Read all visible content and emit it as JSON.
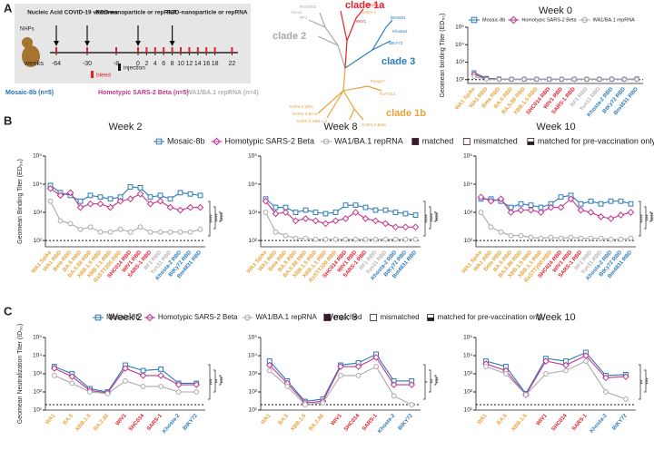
{
  "panel_labels": [
    "A",
    "B",
    "C"
  ],
  "timeline": {
    "subject": "NHPs",
    "axis_label": "weeks",
    "weeks": [
      "-64",
      "-30",
      "-8",
      "0",
      "2",
      "4",
      "6",
      "8",
      "10",
      "12",
      "14",
      "16",
      "18",
      "22"
    ],
    "events": [
      "Nucleic Acid COVID-19 vaccines",
      "RBD-nanoparticle or repRNA",
      "RBD-nanoparticle or repRNA"
    ],
    "key": [
      "bleed",
      "injection"
    ],
    "groups": [
      {
        "name": "Mosaic-8b (n=5)",
        "color": "#1f6fb2"
      },
      {
        "name": "Homotypic SARS-2 Beta (n=5)",
        "color": "#c2368f"
      },
      {
        "name": "WA1/BA.1 repRNA (n=4)",
        "color": "#b0b0b0"
      }
    ]
  },
  "tree": {
    "clades": [
      {
        "name": "clade 1a",
        "color": "#e8202a"
      },
      {
        "name": "clade 2",
        "color": "#a8a8a8"
      },
      {
        "name": "clade 3",
        "color": "#2a7ab8"
      },
      {
        "name": "clade 1b",
        "color": "#e8a33a"
      }
    ],
    "leaves": [
      "SARS-1",
      "WIV1",
      "SHC014",
      "RmYN02",
      "Yun11",
      "RF1",
      "BM4831",
      "Khosta2",
      "BtKY72",
      "SARS-2 WA1",
      "SARS-2 BA.5",
      "SARS-2 XBB.1.5",
      "SARS-2 Beta",
      "Pang17",
      "RaTG13"
    ]
  },
  "legend": [
    {
      "name": "Mosaic-8b",
      "color": "#2a7ab8",
      "marker": "square"
    },
    {
      "name": "Homotypic SARS-2 Beta",
      "color": "#c2368f",
      "marker": "diamond"
    },
    {
      "name": "WA1/BA.1 repRNA",
      "color": "#aaaaaa",
      "marker": "circle"
    }
  ],
  "legend_extra": [
    {
      "name": "matched",
      "fill": "full"
    },
    {
      "name": "mismatched",
      "fill": "none"
    },
    {
      "name": "matched for pre-vaccination only",
      "fill": "half"
    }
  ],
  "chart_data": [
    {
      "type": "line",
      "title": "Week 0",
      "ylabel": "Geomean binding Titer (ED₅₀)",
      "categories": [
        "WA1 Spike",
        "WA1 RBD",
        "Beta RBD",
        "BA.5 RBD",
        "BA.5.88 RBD",
        "XBB.1.5 RBD",
        "SHC014 RBD",
        "WIV1 RBD",
        "SARS-1 RBD",
        "RF1 RBD",
        "Yun11 RBD",
        "Khosta-2 RBD",
        "BtKy72 RBD",
        "Bm4831 RBD"
      ],
      "category_colors": [
        "#e8a33a",
        "#e8a33a",
        "#e8a33a",
        "#e8a33a",
        "#e8a33a",
        "#e8a33a",
        "#e8202a",
        "#e8202a",
        "#e8202a",
        "#b5b5b5",
        "#b5b5b5",
        "#2a7ab8",
        "#2a7ab8",
        "#2a7ab8"
      ],
      "series": [
        {
          "color": "#2a7ab8",
          "values": [
            250,
            120,
            110,
            105,
            105,
            105,
            105,
            105,
            105,
            105,
            105,
            105,
            105,
            110
          ]
        },
        {
          "color": "#c2368f",
          "values": [
            200,
            110,
            105,
            105,
            105,
            105,
            105,
            105,
            105,
            105,
            105,
            105,
            105,
            105
          ]
        },
        {
          "color": "#aaaaaa",
          "values": [
            150,
            105,
            105,
            105,
            105,
            105,
            105,
            105,
            105,
            105,
            105,
            105,
            105,
            105
          ]
        }
      ],
      "ylim": [
        60,
        100000
      ],
      "log_scale": true,
      "threshold": 100,
      "yticks": [
        {
          "value": 100,
          "label": "10²"
        },
        {
          "value": 1000,
          "label": "10³"
        },
        {
          "value": 10000,
          "label": "10⁴"
        },
        {
          "value": 100000,
          "label": "10⁵"
        }
      ]
    },
    {
      "type": "line",
      "title": "Week 2",
      "ylabel": "Geomean Binding Titer (ED₅₀)",
      "categories": [
        "WA1 Spike",
        "WA1 RBD",
        "Beta RBD",
        "BA.5 RBD",
        "BA.5.88 RBD",
        "XBB.1.5 RBD",
        "XBB.1.1 RBD",
        "RsSTT200 RBD",
        "SHC014 RBD",
        "WIV1 RBD",
        "SARS-1 RBD",
        "RF1 RBD",
        "Yun11 RBD",
        "Khosta-2 RBD",
        "BtKy72 RBD",
        "Bm4831 RBD"
      ],
      "category_colors": [
        "#e8a33a",
        "#e8a33a",
        "#e8a33a",
        "#e8a33a",
        "#e8a33a",
        "#e8a33a",
        "#e8a33a",
        "#e8a33a",
        "#e8202a",
        "#e8202a",
        "#e8202a",
        "#b5b5b5",
        "#b5b5b5",
        "#2a7ab8",
        "#2a7ab8",
        "#2a7ab8"
      ],
      "series": [
        {
          "color": "#2a7ab8",
          "values": [
            9000,
            5000,
            4000,
            2500,
            4000,
            3500,
            3000,
            3500,
            8000,
            7500,
            3500,
            4000,
            3000,
            5000,
            4500,
            4000
          ]
        },
        {
          "color": "#c2368f",
          "values": [
            7000,
            4000,
            5000,
            1500,
            2000,
            2000,
            1500,
            2500,
            3000,
            4500,
            2000,
            2500,
            1500,
            1200,
            1500,
            1500
          ]
        },
        {
          "color": "#aaaaaa",
          "values": [
            2500,
            500,
            400,
            250,
            300,
            200,
            200,
            250,
            200,
            300,
            200,
            200,
            200,
            200,
            200,
            250
          ]
        }
      ],
      "ylim": [
        60,
        100000
      ],
      "log_scale": true,
      "threshold": 100,
      "yticks": [
        {
          "value": 100,
          "label": "10²"
        },
        {
          "value": 1000,
          "label": "10³"
        },
        {
          "value": 10000,
          "label": "10⁴"
        },
        {
          "value": 100000,
          "label": "10⁵"
        }
      ],
      "significance": [
        "****",
        "****",
        "****"
      ]
    },
    {
      "type": "line",
      "title": "Week 8",
      "categories": [
        "WA1 Spike",
        "WA1 RBD",
        "Beta RBD",
        "BA.5 RBD",
        "BA.5.88 RBD",
        "XBB.1.5 RBD",
        "XBB.1.1 RBD",
        "RsSTT200 RBD",
        "SHC014 RBD",
        "WIV1 RBD",
        "SARS-1 RBD",
        "RF1 RBD",
        "Yun11 RBD",
        "Khosta-2 RBD",
        "BtKy72 RBD",
        "Bm4831 RBD"
      ],
      "category_colors": [
        "#e8a33a",
        "#e8a33a",
        "#e8a33a",
        "#e8a33a",
        "#e8a33a",
        "#e8a33a",
        "#e8a33a",
        "#e8a33a",
        "#e8202a",
        "#e8202a",
        "#e8202a",
        "#b5b5b5",
        "#b5b5b5",
        "#2a7ab8",
        "#2a7ab8",
        "#2a7ab8"
      ],
      "series": [
        {
          "color": "#2a7ab8",
          "values": [
            3000,
            1500,
            1500,
            1000,
            1200,
            1000,
            900,
            1000,
            1800,
            1800,
            1500,
            1200,
            1200,
            1000,
            900,
            800
          ]
        },
        {
          "color": "#c2368f",
          "values": [
            2500,
            900,
            1000,
            500,
            600,
            500,
            400,
            500,
            600,
            1000,
            600,
            500,
            400,
            300,
            300,
            300
          ]
        },
        {
          "color": "#aaaaaa",
          "values": [
            1000,
            200,
            150,
            120,
            120,
            110,
            110,
            110,
            110,
            110,
            110,
            110,
            110,
            110,
            110,
            110
          ]
        }
      ],
      "ylim": [
        60,
        100000
      ],
      "log_scale": true,
      "threshold": 100,
      "yticks": [
        {
          "value": 100,
          "label": "10²"
        },
        {
          "value": 1000,
          "label": "10³"
        },
        {
          "value": 10000,
          "label": "10⁴"
        },
        {
          "value": 100000,
          "label": "10⁵"
        }
      ],
      "significance": [
        "****",
        "****",
        "****"
      ]
    },
    {
      "type": "line",
      "title": "Week 10",
      "categories": [
        "WA1 Spike",
        "WA1 RBD",
        "Beta RBD",
        "BA.5 RBD",
        "BA.5.88 RBD",
        "XBB.1.5 RBD",
        "XBB.1.1 RBD",
        "RsSTT200 RBD",
        "SHC014 RBD",
        "WIV1 RBD",
        "SARS-1 RBD",
        "RF1 RBD",
        "Yun11 RBD",
        "Khosta-2 RBD",
        "BtKy72 RBD",
        "Bm4831 RBD"
      ],
      "category_colors": [
        "#e8a33a",
        "#e8a33a",
        "#e8a33a",
        "#e8a33a",
        "#e8a33a",
        "#e8a33a",
        "#e8a33a",
        "#e8a33a",
        "#e8202a",
        "#e8202a",
        "#e8202a",
        "#b5b5b5",
        "#b5b5b5",
        "#2a7ab8",
        "#2a7ab8",
        "#2a7ab8"
      ],
      "series": [
        {
          "color": "#2a7ab8",
          "values": [
            3000,
            3000,
            2500,
            1500,
            2000,
            1800,
            1500,
            2000,
            3500,
            4000,
            2000,
            2500,
            2000,
            2500,
            2500,
            2000
          ]
        },
        {
          "color": "#c2368f",
          "values": [
            3500,
            2500,
            3000,
            1000,
            1200,
            1200,
            1000,
            1500,
            1500,
            3000,
            1200,
            1000,
            700,
            600,
            800,
            1000
          ]
        },
        {
          "color": "#aaaaaa",
          "values": [
            1000,
            300,
            200,
            150,
            150,
            130,
            120,
            130,
            120,
            130,
            120,
            120,
            120,
            110,
            110,
            120
          ]
        }
      ],
      "ylim": [
        60,
        100000
      ],
      "log_scale": true,
      "threshold": 100,
      "yticks": [
        {
          "value": 100,
          "label": "10²"
        },
        {
          "value": 1000,
          "label": "10³"
        },
        {
          "value": 10000,
          "label": "10⁴"
        },
        {
          "value": 100000,
          "label": "10⁵"
        }
      ],
      "significance": [
        "****",
        "***",
        "****"
      ]
    },
    {
      "type": "line",
      "title": "Week 2",
      "ylabel": "Geomean Neutralization Titer (ID₅₀)",
      "categories": [
        "WA1",
        "BA.5",
        "XBB.1.5",
        "BA.2.86",
        "WIV1",
        "SHC014",
        "SARS-1",
        "Khosta-2",
        "BtKY72"
      ],
      "category_colors": [
        "#e8a33a",
        "#e8a33a",
        "#e8a33a",
        "#e8a33a",
        "#e8202a",
        "#e8202a",
        "#e8202a",
        "#2a7ab8",
        "#2a7ab8"
      ],
      "series": [
        {
          "color": "#2a7ab8",
          "values": [
            2500,
            1000,
            150,
            100,
            3000,
            1500,
            1800,
            300,
            300
          ]
        },
        {
          "color": "#c2368f",
          "values": [
            2000,
            700,
            120,
            90,
            2000,
            800,
            800,
            250,
            250
          ]
        },
        {
          "color": "#aaaaaa",
          "values": [
            800,
            300,
            100,
            80,
            400,
            200,
            200,
            100,
            100
          ]
        }
      ],
      "ylim": [
        10,
        100000
      ],
      "log_scale": true,
      "threshold": 20,
      "yticks": [
        {
          "value": 10,
          "label": "10¹"
        },
        {
          "value": 100,
          "label": "10²"
        },
        {
          "value": 1000,
          "label": "10³"
        },
        {
          "value": 10000,
          "label": "10⁴"
        },
        {
          "value": 100000,
          "label": "10⁵"
        }
      ],
      "significance": [
        "***",
        "**",
        "***"
      ]
    },
    {
      "type": "line",
      "title": "Week 8",
      "categories": [
        "WA1",
        "BA.5",
        "XBB.1.5",
        "BA.2.86",
        "WIV1",
        "SHC014",
        "SARS-1",
        "Khosta-2",
        "BtKY72"
      ],
      "category_colors": [
        "#e8a33a",
        "#e8a33a",
        "#e8a33a",
        "#e8a33a",
        "#e8202a",
        "#e8202a",
        "#e8202a",
        "#2a7ab8",
        "#2a7ab8"
      ],
      "series": [
        {
          "color": "#2a7ab8",
          "values": [
            5000,
            400,
            30,
            40,
            3000,
            4000,
            12000,
            400,
            400
          ]
        },
        {
          "color": "#c2368f",
          "values": [
            3000,
            300,
            25,
            30,
            2500,
            2500,
            8000,
            250,
            250
          ]
        },
        {
          "color": "#aaaaaa",
          "values": [
            1500,
            200,
            20,
            25,
            800,
            800,
            2500,
            60,
            20
          ]
        }
      ],
      "ylim": [
        10,
        100000
      ],
      "log_scale": true,
      "threshold": 20,
      "yticks": [
        {
          "value": 10,
          "label": "10¹"
        },
        {
          "value": 100,
          "label": "10²"
        },
        {
          "value": 1000,
          "label": "10³"
        },
        {
          "value": 10000,
          "label": "10⁴"
        },
        {
          "value": 100000,
          "label": "10⁵"
        }
      ],
      "significance": [
        "*",
        "**",
        "***"
      ]
    },
    {
      "type": "line",
      "title": "Week 10",
      "categories": [
        "WA1",
        "BA.5",
        "XBB.1.5",
        "WIV1",
        "SHC014",
        "SARS-1",
        "Khosta-2",
        "BtKY72"
      ],
      "category_colors": [
        "#e8a33a",
        "#e8a33a",
        "#e8a33a",
        "#e8202a",
        "#e8202a",
        "#e8202a",
        "#2a7ab8",
        "#2a7ab8"
      ],
      "series": [
        {
          "color": "#2a7ab8",
          "values": [
            5000,
            2500,
            80,
            7000,
            5000,
            15000,
            800,
            900
          ]
        },
        {
          "color": "#c2368f",
          "values": [
            3500,
            1500,
            70,
            5000,
            3000,
            10000,
            600,
            700
          ]
        },
        {
          "color": "#aaaaaa",
          "values": [
            2500,
            1000,
            70,
            1000,
            1500,
            5000,
            100,
            40
          ]
        }
      ],
      "ylim": [
        10,
        100000
      ],
      "log_scale": true,
      "threshold": 20,
      "yticks": [
        {
          "value": 10,
          "label": "10¹"
        },
        {
          "value": 100,
          "label": "10²"
        },
        {
          "value": 1000,
          "label": "10³"
        },
        {
          "value": 10000,
          "label": "10⁴"
        },
        {
          "value": 100000,
          "label": "10⁵"
        }
      ],
      "significance": [
        "**",
        "***"
      ]
    }
  ]
}
